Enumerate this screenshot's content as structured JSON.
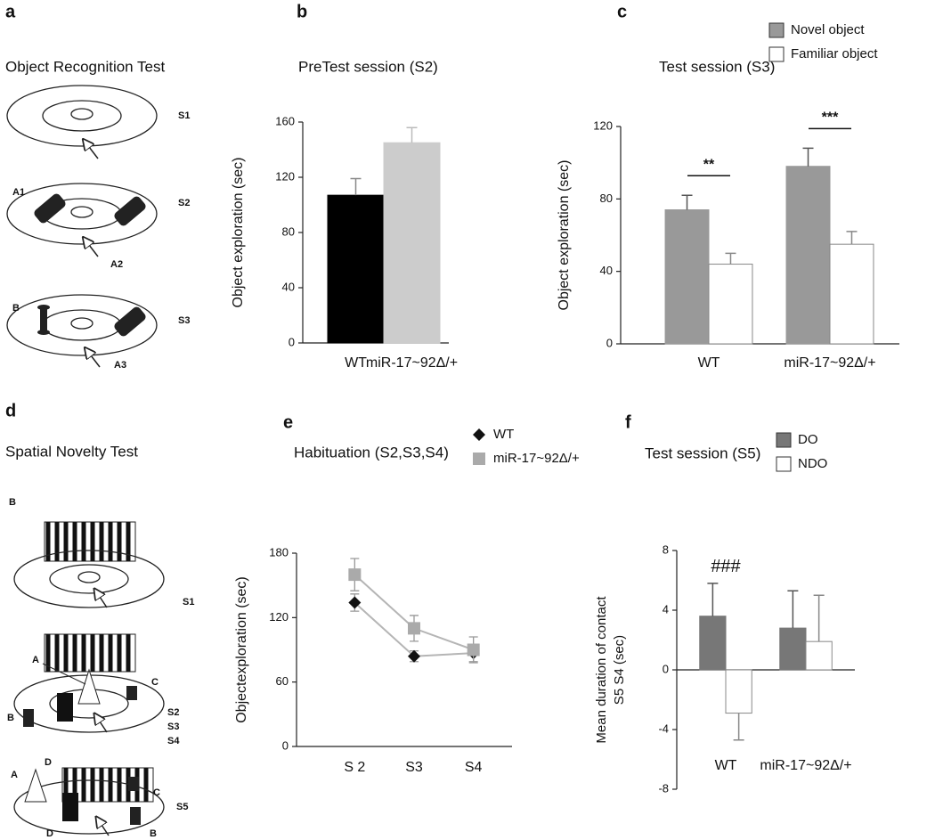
{
  "panel_labels": [
    "a",
    "b",
    "c",
    "d",
    "e",
    "f"
  ],
  "diagrams": [
    {
      "title": "Object Recognition Test",
      "labels": [
        "S1",
        "A1",
        "S2",
        "A2",
        "B",
        "S3",
        "A3"
      ]
    },
    {
      "title": "Spatial Novelty Test",
      "labels": [
        "B",
        "S1",
        "A",
        "C",
        "B",
        "S2",
        "S3",
        "S4",
        "D",
        "A",
        "C",
        "S5",
        "D",
        "B"
      ]
    }
  ],
  "chart_data": [
    {
      "type": "bar",
      "title": "PreTest session (S2)",
      "ylabel": "Object exploration (sec)",
      "categories": [
        "WT",
        "miR-17~92Δ/+"
      ],
      "values": [
        107,
        145
      ],
      "errors": [
        12,
        11
      ],
      "colors": [
        "#000000",
        "#cccccc"
      ],
      "ylim": [
        0,
        160
      ],
      "yticks": [
        0,
        40,
        80,
        120,
        160
      ]
    },
    {
      "type": "bar",
      "title": "Test session (S3)",
      "ylabel": "Object exploration (sec)",
      "categories": [
        "WT",
        "miR-17~92Δ/+"
      ],
      "series": [
        {
          "name": "Novel object",
          "color": "#999999",
          "values": [
            74,
            98
          ],
          "errors": [
            8,
            10
          ]
        },
        {
          "name": "Familiar object",
          "color": "#ffffff",
          "values": [
            44,
            55
          ],
          "errors": [
            6,
            7
          ]
        }
      ],
      "annotations": [
        {
          "text": "**",
          "category": 0
        },
        {
          "text": "***",
          "category": 1
        }
      ],
      "ylim": [
        0,
        120
      ],
      "yticks": [
        0,
        40,
        80,
        120
      ]
    },
    {
      "type": "line",
      "title": "Habituation (S2,S3,S4)",
      "ylabel": "Objectexploration (sec)",
      "categories": [
        "S 2",
        "S3",
        "S4"
      ],
      "line_color": "#b5b5b5",
      "series": [
        {
          "name": "WT",
          "color": "#111111",
          "marker": "diamond",
          "values": [
            134,
            84,
            87
          ],
          "errors": [
            8,
            5,
            8
          ]
        },
        {
          "name": "miR-17~92Δ/+",
          "color": "#aaaaaa",
          "marker": "square",
          "values": [
            160,
            110,
            90
          ],
          "errors": [
            15,
            12,
            12
          ]
        }
      ],
      "ylim": [
        0,
        180
      ],
      "yticks": [
        0,
        60,
        120,
        180
      ]
    },
    {
      "type": "bar",
      "title": "Test session (S5)",
      "ylabel": [
        "Mean duration of contact",
        "S5 S4 (sec)"
      ],
      "categories": [
        "WT",
        "miR-17~92Δ/+"
      ],
      "series": [
        {
          "name": "DO",
          "color": "#777777",
          "values": [
            3.6,
            2.8
          ],
          "errors": [
            2.2,
            2.5
          ]
        },
        {
          "name": "NDO",
          "color": "#ffffff",
          "values": [
            -2.9,
            1.9
          ],
          "errors": [
            1.8,
            3.1
          ]
        }
      ],
      "annotations": [
        {
          "text": "###",
          "category": 0
        }
      ],
      "ylim": [
        -8,
        8
      ],
      "yticks": [
        -8,
        -4,
        0,
        4,
        8
      ]
    }
  ]
}
